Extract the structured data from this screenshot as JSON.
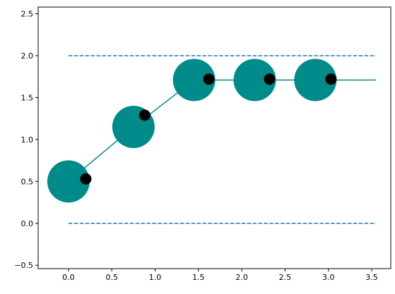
{
  "chart_data": {
    "type": "line",
    "title": "",
    "xlabel": "",
    "ylabel": "",
    "xlim": [
      -0.35,
      3.72
    ],
    "ylim": [
      -0.54,
      2.58
    ],
    "grid": false,
    "legend": "none",
    "x_ticks": [
      0.0,
      0.5,
      1.0,
      1.5,
      2.0,
      2.5,
      3.0,
      3.5
    ],
    "x_tick_labels": [
      "0.0",
      "0.5",
      "1.0",
      "1.5",
      "2.0",
      "2.5",
      "3.0",
      "3.5"
    ],
    "y_ticks": [
      -0.5,
      0.0,
      0.5,
      1.0,
      1.5,
      2.0,
      2.5
    ],
    "y_tick_labels": [
      "−0.5",
      "0.0",
      "0.5",
      "1.0",
      "1.5",
      "2.0",
      "2.5"
    ],
    "series": [
      {
        "style": "line",
        "color": "#008b8b",
        "x": [
          0.0,
          0.75,
          1.45,
          2.15,
          2.85,
          3.55
        ],
        "y": [
          0.5,
          1.15,
          1.71,
          1.71,
          1.71,
          1.71
        ]
      },
      {
        "style": "large-markers",
        "color": "#008b8b",
        "x": [
          0.0,
          0.75,
          1.45,
          2.15,
          2.85
        ],
        "y": [
          0.5,
          1.15,
          1.71,
          1.71,
          1.71
        ]
      },
      {
        "style": "small-markers",
        "color": "#000000",
        "x": [
          0.2,
          0.88,
          1.62,
          2.32,
          3.03
        ],
        "y": [
          0.53,
          1.29,
          1.72,
          1.72,
          1.72
        ]
      }
    ],
    "reference_lines": [
      {
        "y": 2.0,
        "x_start": 0.0,
        "x_end": 3.55,
        "color": "#1f77b4",
        "style": "dashed"
      },
      {
        "y": 0.0,
        "x_start": 0.0,
        "x_end": 3.55,
        "color": "#1f77b4",
        "style": "dashed"
      }
    ]
  }
}
